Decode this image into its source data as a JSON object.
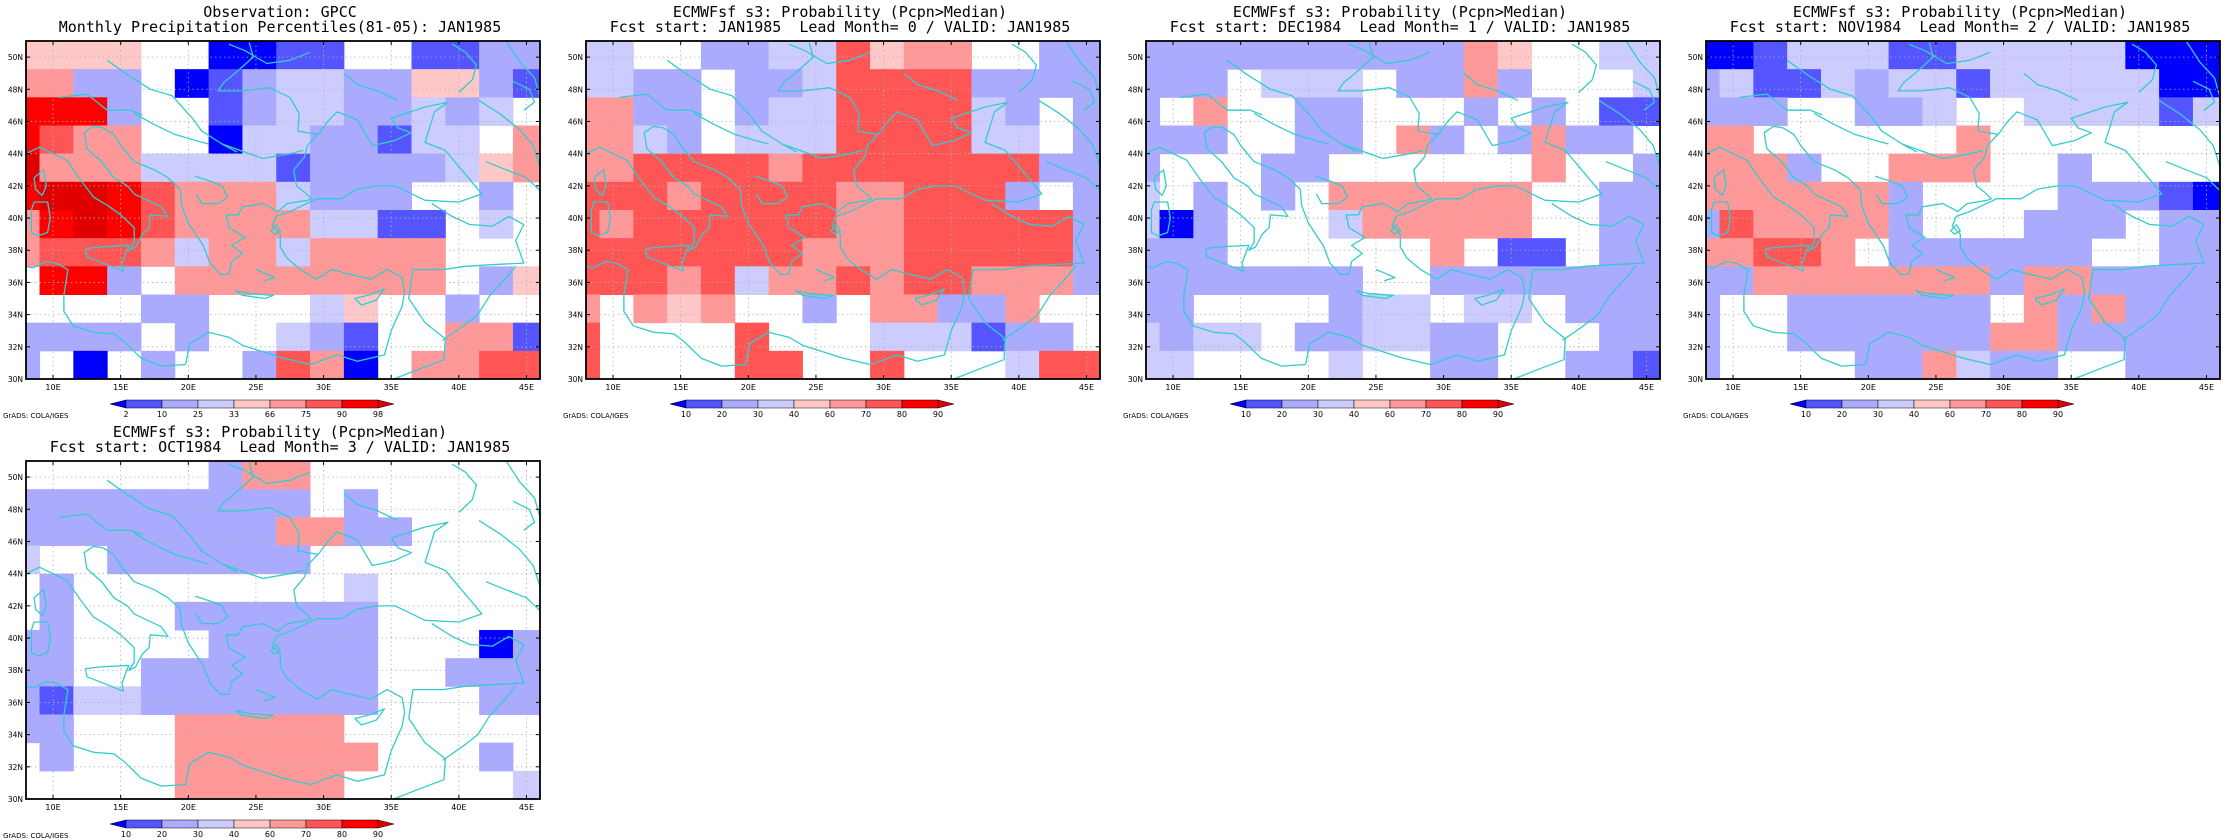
{
  "coastline_color": "#33cccc",
  "credit": "GrADS: COLA/IGES",
  "panels": [
    {
      "title_line1": "Observation: GPCC",
      "title_line2": "Monthly Precipitation Percentiles(81-05): JAN1985",
      "legend": {
        "labels": [
          "2",
          "10",
          "25",
          "33",
          "66",
          "75",
          "90",
          "98"
        ]
      },
      "grid": [
        "5555001122002233",
        "6633012344335532",
        "8883002344334340",
        "8766001443324406",
        "9666444423333456",
        "8998766643330030",
        "6898766664422040",
        "6777646646666000",
        "0883066666666035",
        "0000330004500300",
        "3333030043200662",
        "3010300376106677"
      ]
    },
    {
      "title_line1": "ECMWFsf s3: Probability (Pcpn>Median)",
      "title_line2": "Fcst start: JAN1985  Lead Month= 0 / VALID: JAN1985",
      "legend": {
        "labels": [
          "10",
          "20",
          "30",
          "40",
          "60",
          "70",
          "80",
          "90"
        ]
      },
      "grid": [
        "4400334475660033",
        "4433033477773333",
        "6633034477774303",
        "6643044477774403",
        "6677776777777733",
        "7776777766777303",
        "7677777766777773",
        "7777777666777773",
        "7776746676776663",
        "6065600306633600",
        "7000070004442330",
        "7000077007000477"
      ]
    },
    {
      "title_line1": "ECMWFsf s3: Probability (Pcpn>Median)",
      "title_line2": "Fcst start: DEC1984  Lead Month= 1 / VALID: JAN1985",
      "legend": {
        "labels": [
          "10",
          "20",
          "30",
          "40",
          "60",
          "70",
          "80",
          "90"
        ]
      },
      "grid": [
        "3333333333650044",
        "3330444033630004",
        "3060033000303022",
        "3330033063036330",
        "3000330000006003",
        "4030306666660033",
        "4130004666660033",
        "3330000006022033",
        "3333333003333333",
        "3300003440440333",
        "4344033443300033",
        "4400004003300332"
      ]
    },
    {
      "title_line1": "ECMWFsf s3: Probability (Pcpn>Median)",
      "title_line2": "Fcst start: NOV1984  Lead Month= 2 / VALID: JAN1985",
      "legend": {
        "labels": [
          "10",
          "20",
          "30",
          "40",
          "60",
          "70",
          "80",
          "90"
        ]
      },
      "grid": [
        "1124442244444111",
        "3422434424444411",
        "3330033400444424",
        "6600000060000000",
        "6663006660030000",
        "6666663000033321",
        "3766663000333033",
        "6677603333330033",
        "3366666663663333",
        "3003333330636333",
        "3003333336633333",
        "3000033643300333"
      ]
    },
    {
      "title_line1": "ECMWFsf s3: Probability (Pcpn>Median)",
      "title_line2": "Fcst start: OCT1984  Lead Month= 3 / VALID: JAN1985",
      "legend": {
        "labels": [
          "10",
          "20",
          "30",
          "40",
          "60",
          "70",
          "80",
          "90"
        ]
      },
      "grid": [
        "0000003660000000",
        "3333333330300000",
        "3333333366330000",
        "4003333330000000",
        "0300000000400000",
        "0300033333300000",
        "3300003333300013",
        "3300333333300333",
        "3244333333300033",
        "3300066666000000",
        "0300066666600030",
        "0000066666000004"
      ]
    }
  ]
}
